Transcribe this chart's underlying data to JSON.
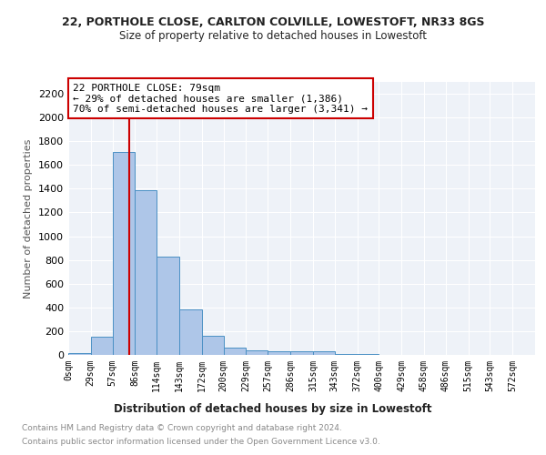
{
  "title1": "22, PORTHOLE CLOSE, CARLTON COLVILLE, LOWESTOFT, NR33 8GS",
  "title2": "Size of property relative to detached houses in Lowestoft",
  "xlabel": "Distribution of detached houses by size in Lowestoft",
  "ylabel": "Number of detached properties",
  "bin_labels": [
    "0sqm",
    "29sqm",
    "57sqm",
    "86sqm",
    "114sqm",
    "143sqm",
    "172sqm",
    "200sqm",
    "229sqm",
    "257sqm",
    "286sqm",
    "315sqm",
    "343sqm",
    "372sqm",
    "400sqm",
    "429sqm",
    "458sqm",
    "486sqm",
    "515sqm",
    "543sqm",
    "572sqm"
  ],
  "bar_values": [
    15,
    155,
    1710,
    1390,
    830,
    380,
    160,
    65,
    35,
    30,
    30,
    30,
    10,
    5,
    3,
    2,
    2,
    1,
    1,
    1,
    0
  ],
  "bar_color": "#aec6e8",
  "bar_edgecolor": "#4a90c4",
  "red_line_x": 79,
  "ylim": [
    0,
    2300
  ],
  "yticks": [
    0,
    200,
    400,
    600,
    800,
    1000,
    1200,
    1400,
    1600,
    1800,
    2000,
    2200
  ],
  "annotation_title": "22 PORTHOLE CLOSE: 79sqm",
  "annotation_line1": "← 29% of detached houses are smaller (1,386)",
  "annotation_line2": "70% of semi-detached houses are larger (3,341) →",
  "annotation_box_color": "#ffffff",
  "annotation_box_edgecolor": "#cc0000",
  "footer1": "Contains HM Land Registry data © Crown copyright and database right 2024.",
  "footer2": "Contains public sector information licensed under the Open Government Licence v3.0.",
  "bin_edges": [
    0,
    29,
    57,
    86,
    114,
    143,
    172,
    200,
    229,
    257,
    286,
    315,
    343,
    372,
    400,
    429,
    458,
    486,
    515,
    543,
    572,
    601
  ]
}
